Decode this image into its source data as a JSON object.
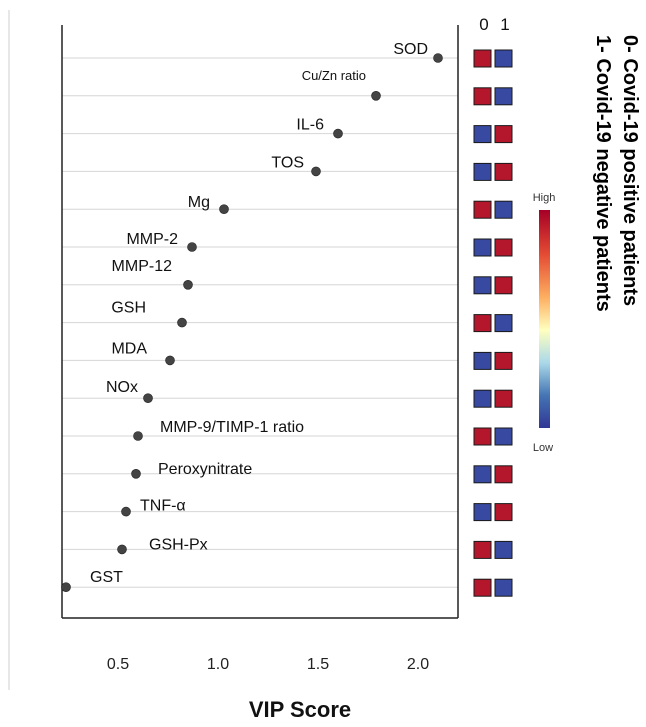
{
  "chart_data": {
    "type": "scatter",
    "xlabel": "VIP Score",
    "xlim": [
      0.22,
      2.2
    ],
    "xticks": [
      "0.5",
      "1.0",
      "1.5",
      "2.0"
    ],
    "xtick_values": [
      0.5,
      1.0,
      1.5,
      2.0
    ],
    "gridlines": "horizontal",
    "points": [
      {
        "label": "SOD",
        "value": 2.1
      },
      {
        "label": "Cu/Zn ratio",
        "value": 1.79
      },
      {
        "label": "IL-6",
        "value": 1.6
      },
      {
        "label": "TOS",
        "value": 1.49
      },
      {
        "label": "Mg",
        "value": 1.03
      },
      {
        "label": "MMP-2",
        "value": 0.87
      },
      {
        "label": "MMP-12",
        "value": 0.85
      },
      {
        "label": "GSH",
        "value": 0.82
      },
      {
        "label": "MDA",
        "value": 0.76
      },
      {
        "label": "NOx",
        "value": 0.65
      },
      {
        "label": "MMP-9/TIMP-1 ratio",
        "value": 0.6
      },
      {
        "label": "Peroxynitrate",
        "value": 0.59
      },
      {
        "label": "TNF-α",
        "value": 0.54
      },
      {
        "label": "GSH-Px",
        "value": 0.52
      },
      {
        "label": "GST",
        "value": 0.24
      }
    ],
    "heatmap": {
      "columns": [
        "0",
        "1"
      ],
      "rows": [
        [
          "high",
          "low"
        ],
        [
          "high",
          "low"
        ],
        [
          "low",
          "high"
        ],
        [
          "low",
          "high"
        ],
        [
          "high",
          "low"
        ],
        [
          "low",
          "high"
        ],
        [
          "low",
          "high"
        ],
        [
          "high",
          "low"
        ],
        [
          "low",
          "high"
        ],
        [
          "low",
          "high"
        ],
        [
          "high",
          "low"
        ],
        [
          "low",
          "high"
        ],
        [
          "low",
          "high"
        ],
        [
          "high",
          "low"
        ],
        [
          "high",
          "low"
        ]
      ],
      "colors": {
        "high": "#b4162c",
        "low": "#3849a2"
      }
    },
    "legend": {
      "high": "High",
      "low": "Low",
      "placement": "right"
    },
    "annotations": [
      "0- Covid-19 positive patients",
      "1- Covid-19 negative patients"
    ]
  }
}
